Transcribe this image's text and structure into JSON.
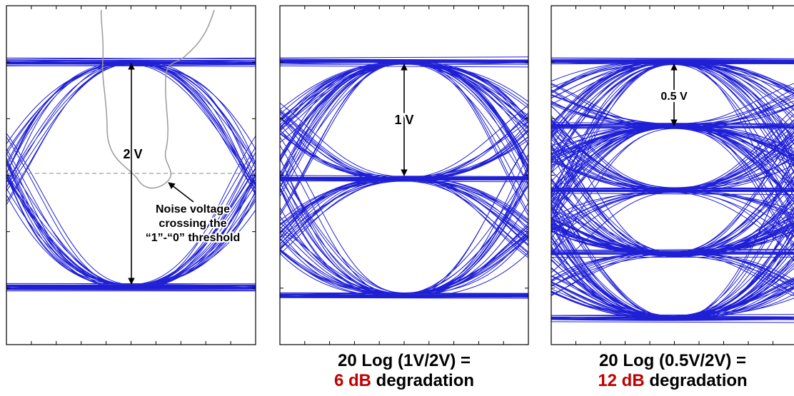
{
  "panels": [
    {
      "label": "2 V",
      "levels": 2
    },
    {
      "label": "1 V",
      "levels": 3
    },
    {
      "label": "0.5 V",
      "levels": 5
    }
  ],
  "annotation": {
    "line1": "Noise voltage",
    "line2": "crossing the",
    "line3": "“1”-“0” threshold"
  },
  "captions": [
    {
      "formula": "20 Log (1V/2V) =",
      "value": "6 dB",
      "suffix": " degradation"
    },
    {
      "formula": "20 Log (0.5V/2V) =",
      "value": "12 dB",
      "suffix": " degradation"
    }
  ],
  "colors": {
    "trace": "#1f1fd6",
    "highlight": "#c00000",
    "noise_path": "#9a9a9a",
    "threshold": "#8a8a8a"
  }
}
